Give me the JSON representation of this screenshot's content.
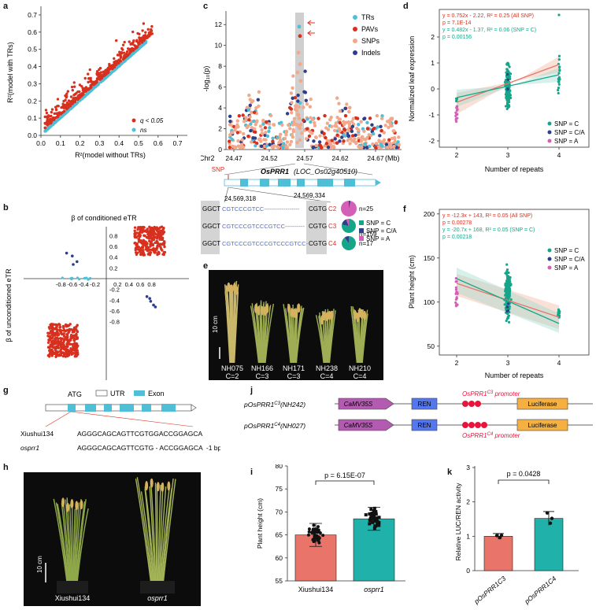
{
  "panel_labels": {
    "a": "a",
    "b": "b",
    "c": "c",
    "d": "d",
    "e": "e",
    "f": "f",
    "g": "g",
    "h": "h",
    "i": "i",
    "j": "j",
    "k": "k"
  },
  "colors": {
    "red": "#d7301f",
    "cyan": "#4fbfd8",
    "teal": "#17a589",
    "navy": "#2b3f8c",
    "pink": "#d35fb7",
    "salmon": "#f2a98b",
    "bar_red": "#e8746a",
    "bar_teal": "#20b2aa",
    "purple": "#b35bb0",
    "blue": "#5577ee",
    "orange": "#f5b041"
  },
  "a": {
    "xlabel": "R²(model without TRs)",
    "ylabel": "R²(model with TRs)",
    "legend": [
      {
        "label": "q < 0.05",
        "color": "#d7301f"
      },
      {
        "label": "ns",
        "color": "#4fbfd8"
      }
    ],
    "xticks": [
      "0.0",
      "0.1",
      "0.2",
      "0.3",
      "0.4",
      "0.5",
      "0.6",
      "0.7"
    ],
    "yticks": [
      "0.0",
      "0.1",
      "0.2",
      "0.3",
      "0.4",
      "0.5",
      "0.6",
      "0.7"
    ]
  },
  "b": {
    "title": "β of conditioned eTR",
    "ylabel": "β of unconditioned eTR",
    "xticks": [
      "-0.8",
      "-0.6",
      "-0.4",
      "-0.2",
      "0.2",
      "0.4",
      "0.6",
      "0.8"
    ],
    "yticks": [
      "0.8",
      "0.6",
      "0.4",
      "0.2",
      "-0.2",
      "-0.4",
      "-0.6",
      "-0.8"
    ]
  },
  "c": {
    "ylabel": "-log₁₀(p)",
    "xaxis_prefix": "Chr2",
    "xticks": [
      "24.47",
      "24.52",
      "24.57",
      "24.62",
      "24.67"
    ],
    "xunit": "(Mb)",
    "yticks": [
      "0",
      "2",
      "4",
      "6",
      "8",
      "10",
      "12"
    ],
    "legend": [
      {
        "label": "TRs",
        "color": "#4fbfd8"
      },
      {
        "label": "PAVs",
        "color": "#d7301f"
      },
      {
        "label": "SNPs",
        "color": "#f2a98b"
      },
      {
        "label": "Indels",
        "color": "#2b3f8c"
      }
    ],
    "snp_label": "SNP",
    "gene": "OsPRR1",
    "gene_id": "(LOC_Os02g40510)",
    "pos_left": "24,569,318",
    "pos_right": "24,569,334",
    "alleles": [
      {
        "left": "GGCT",
        "seq": "CGTCCCGTCC-",
        "dash": "-----------------",
        "right": "CGTG",
        "cls": "C2",
        "n": "n=25"
      },
      {
        "left": "GGCT",
        "seq": "CGTCCCGTCCCGTCC",
        "dash": "----------",
        "right": "CGTG",
        "cls": "C3",
        "n": "n=159"
      },
      {
        "left": "GGCT",
        "seq": "CGTCCCGTCCCGTCCCGTCC",
        "dash": "-",
        "right": "CGTG",
        "cls": "C4",
        "n": "n=17"
      }
    ],
    "pie_legend": [
      "SNP = C",
      "SNP = C/A",
      "SNP = A"
    ]
  },
  "d": {
    "ylabel": "Normalized leaf expression",
    "xlabel": "Number of repeats",
    "xticks": [
      "2",
      "3",
      "4"
    ],
    "yticks": [
      "2",
      "1",
      "0",
      "-1",
      "-2"
    ],
    "eq": [
      "y = 0.752x - 2.22, R² = 0.25 (All SNP)",
      "p = 7.1E-14",
      "y = 0.482x - 1.37, R² = 0.06 (SNP = C)",
      "p = 0.00156"
    ],
    "legend": [
      "SNP = C",
      "SNP = C/A",
      "SNP = A"
    ]
  },
  "e": {
    "scale": "10 cm",
    "plants": [
      {
        "name": "NH075",
        "c": "C=2"
      },
      {
        "name": "NH166",
        "c": "C=3"
      },
      {
        "name": "NH171",
        "c": "C=3"
      },
      {
        "name": "NH238",
        "c": "C=4"
      },
      {
        "name": "NH210",
        "c": "C=4"
      }
    ]
  },
  "f": {
    "ylabel": "Plant height (cm)",
    "xlabel": "Number of repeats",
    "xticks": [
      "2",
      "3",
      "4"
    ],
    "yticks": [
      "200",
      "150",
      "100",
      "50"
    ],
    "eq": [
      "y = -12.3x + 143, R² = 0.05 (All SNP)",
      "p = 0.00278",
      "y = -20.7x + 168, R² = 0.05 (SNP = C)",
      "p = 0.00218"
    ],
    "legend": [
      "SNP = C",
      "SNP = C/A",
      "SNP = A"
    ]
  },
  "g": {
    "atg": "ATG",
    "utr": "UTR",
    "exon": "Exon",
    "rows": [
      {
        "name": "Xiushui134",
        "seq": "AGGGCAGCAGTTCGTGGACCGGAGCA"
      },
      {
        "name": "osprr1",
        "seq": "AGGGCAGCAGTTCGTG - ACCGGAGCA  -1 bp"
      }
    ]
  },
  "h": {
    "scale": "10 cm",
    "labels": [
      "Xiushui134",
      "osprr1"
    ]
  },
  "i": {
    "ylabel": "Plant height (cm)",
    "pval": "p = 6.15E-07",
    "yticks": [
      "80",
      "75",
      "70",
      "65",
      "60",
      "55"
    ],
    "chart_data": {
      "type": "bar",
      "categories": [
        "Xiushui134",
        "osprr1"
      ],
      "values": [
        65,
        68.5
      ],
      "ylim": [
        55,
        80
      ],
      "ylabel": "Plant height (cm)"
    }
  },
  "j": {
    "rows": [
      {
        "label": "pOsPRR1C3(NH242)",
        "promoter": "OsPRR1C3 promoter"
      },
      {
        "label": "pOsPRR1C4(NH027)",
        "promoter": "OsPRR1C4 promoter"
      }
    ],
    "camv": "CaMV35S",
    "ren": "REN",
    "luc": "Luciferase"
  },
  "k": {
    "ylabel": "Relative LUC/REN activity",
    "pval": "p = 0.0428",
    "yticks": [
      "3",
      "2",
      "1",
      "0"
    ],
    "categories": [
      "pOsPRR1C3",
      "pOsPRR1C4"
    ],
    "chart_data": {
      "type": "bar",
      "categories": [
        "pOsPRR1C3",
        "pOsPRR1C4"
      ],
      "values": [
        1.0,
        1.52
      ],
      "ylim": [
        0,
        3
      ],
      "ylabel": "Relative LUC/REN activity"
    }
  }
}
